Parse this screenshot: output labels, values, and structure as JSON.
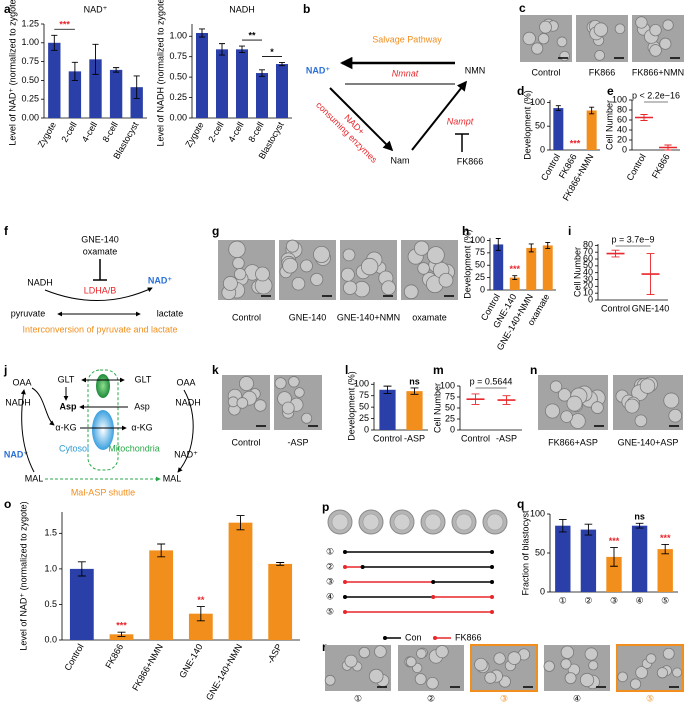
{
  "chart_data": [
    {
      "type": "bar",
      "panel": "a",
      "title": "NAD⁺",
      "ylabel": "Level of NAD⁺ (normalized to zygote)",
      "categories": [
        "Zygote",
        "2-cell",
        "4-cell",
        "8-cell",
        "Blastocyst"
      ],
      "values": [
        1.0,
        0.62,
        0.78,
        0.64,
        0.41
      ],
      "errors": [
        0.1,
        0.12,
        0.2,
        0.03,
        0.15
      ],
      "color": "#2b3fa8",
      "ylim": [
        0,
        1.25
      ],
      "yticks": [
        {
          "value": 0,
          "label": "0.00"
        },
        {
          "value": 0.25,
          "label": "0.25"
        },
        {
          "value": 0.5,
          "label": "0.50"
        },
        {
          "value": 0.75,
          "label": "0.75"
        },
        {
          "value": 1,
          "label": "1.00"
        },
        {
          "value": 1.25,
          "label": "1.25"
        }
      ],
      "value_annotations": [
        null,
        "***",
        null,
        null,
        null
      ],
      "annotation_colors": [
        null,
        "#e8262b",
        null,
        null,
        null
      ],
      "brackets": true
    },
    {
      "type": "bar",
      "title": "NADH",
      "ylabel": "Level of NADH (normalized to zygote)",
      "categories": [
        "Zygote",
        "2-cell",
        "4-cell",
        "8-cell",
        "Blastocyst"
      ],
      "values": [
        1.04,
        0.84,
        0.84,
        0.55,
        0.66
      ],
      "errors": [
        0.05,
        0.07,
        0.04,
        0.04,
        0.02
      ],
      "color": "#2b3fa8",
      "ylim": [
        0,
        1.15
      ],
      "yticks": [
        {
          "value": 0,
          "label": "0.00"
        },
        {
          "value": 0.25,
          "label": "0.25"
        },
        {
          "value": 0.5,
          "label": "0.50"
        },
        {
          "value": 0.75,
          "label": "0.75"
        },
        {
          "value": 1,
          "label": "1.00"
        }
      ],
      "value_annotations": [
        null,
        null,
        null,
        "**",
        "*"
      ],
      "brackets": true
    },
    {
      "type": "bar",
      "panel": "d",
      "ylabel": "Development (%)",
      "categories": [
        "Control",
        "FK866",
        "FK866+NMN"
      ],
      "values": [
        88,
        0,
        83
      ],
      "errors": [
        5,
        0,
        7
      ],
      "colors": [
        "#2b3fa8",
        "#f28e1c",
        "#f28e1c"
      ],
      "ylim": [
        0,
        105
      ],
      "yticks": [
        0,
        50,
        100
      ],
      "value_annotations": [
        null,
        "***",
        null
      ],
      "annotation_colors": [
        null,
        "#e8262b",
        null
      ]
    },
    {
      "type": "dot",
      "panel": "e",
      "ylabel": "Cell Number",
      "categories": [
        "Control",
        "FK866"
      ],
      "values": [
        65,
        5
      ],
      "errors": [
        6,
        5
      ],
      "color": "#e8262b",
      "ylim": [
        0,
        100
      ],
      "yticks": [
        0,
        20,
        40,
        60,
        80,
        100
      ],
      "annotation": "p < 2.2e−16"
    },
    {
      "type": "bar",
      "panel": "h",
      "ylabel": "Development (%)",
      "categories": [
        "Control",
        "GNE-140",
        "GNE-140+NMN",
        "oxamate"
      ],
      "values": [
        92,
        25,
        85,
        90
      ],
      "errors": [
        12,
        4,
        8,
        6
      ],
      "colors": [
        "#2b3fa8",
        "#f28e1c",
        "#f28e1c",
        "#f28e1c"
      ],
      "ylim": [
        0,
        105
      ],
      "yticks": [
        0,
        25,
        50,
        75,
        100
      ],
      "value_annotations": [
        null,
        "***",
        null,
        null
      ],
      "annotation_colors": [
        null,
        "#e8262b",
        null,
        null
      ]
    },
    {
      "type": "dot",
      "panel": "i",
      "ylabel": "Cell Number",
      "categories": [
        "Control",
        "GNE-140"
      ],
      "values": [
        68,
        38
      ],
      "errors": [
        5,
        30
      ],
      "color": "#e8262b",
      "ylim": [
        0,
        82
      ],
      "yticks": [
        0,
        10,
        20,
        30,
        40,
        50,
        60,
        70,
        80
      ],
      "annotation": "p = 3.7e−9"
    },
    {
      "type": "bar",
      "panel": "l",
      "ylabel": "Development (%)",
      "categories": [
        "Control",
        "-ASP"
      ],
      "values": [
        88,
        85
      ],
      "errors": [
        8,
        7
      ],
      "colors": [
        "#2b3fa8",
        "#f28e1c"
      ],
      "ylim": [
        0,
        105
      ],
      "yticks": [
        0,
        25,
        50,
        75,
        100
      ],
      "value_annotations": [
        null,
        "ns"
      ]
    },
    {
      "type": "dot",
      "panel": "m",
      "ylabel": "Cell Number",
      "categories": [
        "Control",
        "-ASP"
      ],
      "values": [
        70,
        68
      ],
      "errors": [
        12,
        10
      ],
      "color": "#e8262b",
      "ylim": [
        0,
        100
      ],
      "yticks": [
        0,
        25,
        50,
        75,
        100
      ],
      "annotation": "p = 0.5644"
    },
    {
      "type": "bar",
      "panel": "o",
      "ylabel": "Level of NAD⁺ (normalized to zygote)",
      "categories": [
        "Control",
        "FK866",
        "FK866+NMN",
        "GNE-140",
        "GNE-140+NMN",
        "-ASP"
      ],
      "values": [
        1.0,
        0.08,
        1.26,
        0.37,
        1.65,
        1.07
      ],
      "errors": [
        0.1,
        0.03,
        0.09,
        0.1,
        0.1,
        0.02
      ],
      "colors": [
        "#2b3fa8",
        "#f28e1c",
        "#f28e1c",
        "#f28e1c",
        "#f28e1c",
        "#f28e1c"
      ],
      "ylim": [
        0,
        1.8
      ],
      "yticks": [
        {
          "value": 0,
          "label": "0.0"
        },
        {
          "value": 0.5,
          "label": "0.5"
        },
        {
          "value": 1,
          "label": "1.0"
        },
        {
          "value": 1.5,
          "label": "1.5"
        }
      ],
      "value_annotations": [
        null,
        "***",
        null,
        "**",
        null,
        null
      ],
      "annotation_colors": [
        null,
        "#e8262b",
        null,
        "#e8262b",
        null,
        null
      ]
    },
    {
      "type": "bar",
      "panel": "q",
      "ylabel": "Fraction of blastocyst",
      "categories": [
        "①",
        "②",
        "③",
        "④",
        "⑤"
      ],
      "values": [
        85,
        80,
        45,
        85,
        55
      ],
      "errors": [
        8,
        7,
        12,
        3,
        6
      ],
      "colors": [
        "#2b3fa8",
        "#2b3fa8",
        "#f28e1c",
        "#2b3fa8",
        "#f28e1c"
      ],
      "ylim": [
        0,
        100
      ],
      "yticks": [
        0,
        50,
        100
      ],
      "value_annotations": [
        null,
        null,
        "***",
        "ns",
        "***"
      ],
      "annotation_colors": [
        null,
        null,
        "#e8262b",
        null,
        "#e8262b"
      ]
    }
  ],
  "diagram_b": {
    "panel": "b",
    "title": "Salvage Pathway",
    "nad": "NAD⁺",
    "nmn": "NMN",
    "nam": "Nam",
    "nmnat": "Nmnat",
    "nampt": "Nampt",
    "inhibitor": "FK866",
    "consuming": [
      "NAD+",
      "consuming enzymes"
    ]
  },
  "diagram_f": {
    "panel": "f",
    "inhibitors": [
      "GNE-140",
      "oxamate"
    ],
    "nadh": "NADH",
    "nad": "NAD⁺",
    "enzyme": "LDHA/B",
    "pyruvate": "pyruvate",
    "lactate": "lactate",
    "caption": "Interconversion of pyruvate and lactate"
  },
  "diagram_j": {
    "panel": "j",
    "left": {
      "oaa": "OAA",
      "glt": "GLT",
      "asp": "Asp",
      "akg": "α-KG",
      "nadh": "NADH",
      "nad": "NAD⁺",
      "mal": "MAL"
    },
    "right": {
      "oaa": "OAA",
      "glt": "GLT",
      "asp": "Asp",
      "akg": "α-KG",
      "nadh": "NADH",
      "nad": "NAD⁺",
      "mal": "MAL"
    },
    "cytosol": "Cytosol",
    "mitochondria": "Mitochondria",
    "caption": "Mal-ASP shuttle"
  },
  "diagram_p": {
    "panel": "p",
    "rows": [
      "①",
      "②",
      "③",
      "④",
      "⑤"
    ],
    "legend": [
      {
        "name": "Con",
        "color": "#000000"
      },
      {
        "name": "FK866",
        "color": "#e8262b"
      }
    ]
  },
  "images": {
    "c": {
      "panel": "c",
      "labels": [
        "Control",
        "FK866",
        "FK866+NMN"
      ]
    },
    "g": {
      "panel": "g",
      "labels": [
        "Control",
        "GNE-140",
        "GNE-140+NMN",
        "oxamate"
      ]
    },
    "k": {
      "panel": "k",
      "labels": [
        "Control",
        "-ASP"
      ]
    },
    "n": {
      "panel": "n",
      "labels": [
        "FK866+ASP",
        "GNE-140+ASP"
      ]
    },
    "r": {
      "panel": "r",
      "labels": [
        "①",
        "②",
        "③",
        "④",
        "⑤"
      ],
      "highlighted": [
        false,
        false,
        true,
        false,
        true
      ],
      "highlight_color": "#f28e1c"
    }
  }
}
